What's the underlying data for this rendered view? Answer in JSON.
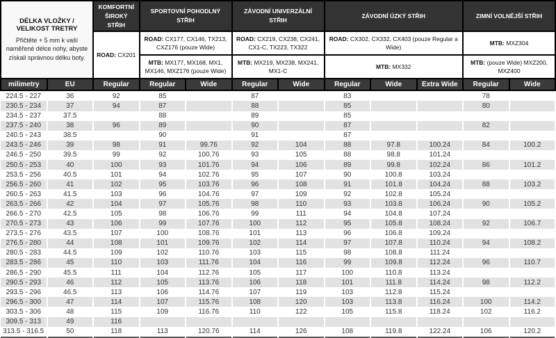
{
  "colors": {
    "header_dark": "#333333",
    "col_header_dark": "#3a3a3a",
    "intro_bg": "#f8f8f8",
    "zebra_gray": "#e2e2e2",
    "text_light": "#ffffff",
    "text_dark": "#333333"
  },
  "intro": {
    "title": "DÉLKA VLOŽKY / VELIKOST TRETRY",
    "description": "Přičtěte + 5 mm k vaší naměřené délce nohy, abyste získali správnou délku boty."
  },
  "groups": [
    {
      "title": "KOMFORTNÍ ŠIROKÝ STŘIH",
      "sub": [
        {
          "label": "ROAD:",
          "text": " CX201"
        }
      ]
    },
    {
      "title": "SPORTOVNÍ POHODLNÝ STŘIH",
      "sub": [
        {
          "label": "ROAD:",
          "text": " CX177, CX146, TX213, CXZ176 (pouze Wide)"
        },
        {
          "label": "MTB:",
          "text": " MX177, MX168, MX1, MX146, MXZ176 (pouze Wide)"
        }
      ]
    },
    {
      "title": "ZÁVODNÍ UNIVERZÁLNÍ STŘIH",
      "sub": [
        {
          "label": "ROAD:",
          "text": " CX219, CX238, CX241, CX1-C, TX223, TX322"
        },
        {
          "label": "MTB:",
          "text": " MX219, MX238, MX241, MX1-C"
        }
      ]
    },
    {
      "title": "ZÁVODNÍ ÚZKÝ STŘIH",
      "sub": [
        {
          "label": "ROAD:",
          "text": " CX302, CX332, CX403 (pouze Regular a Wide)"
        },
        {
          "label": "MTB:",
          "text": " MX332"
        }
      ]
    },
    {
      "title": "ZIMNÍ VOLNĚJŠÍ STŘIH",
      "sub": [
        {
          "label": "MTB:",
          "text": " MXZ304"
        },
        {
          "label": "MTB:",
          "text": " (pouze Wide) MXZ200, MXZ400"
        }
      ]
    }
  ],
  "table": {
    "columns": [
      "milimetry",
      "EU",
      "Regular",
      "Regular",
      "Wide",
      "Regular",
      "Wide",
      "Regular",
      "Wide",
      "Extra Wide",
      "Regular",
      "Wide"
    ],
    "rows": [
      [
        "224.5 - 227",
        "36",
        "92",
        "85",
        "",
        "87",
        "",
        "83",
        "",
        "",
        "78",
        ""
      ],
      [
        "230.5 - 234",
        "37",
        "94",
        "87",
        "",
        "88",
        "",
        "85",
        "",
        "",
        "80",
        ""
      ],
      [
        "234.5 - 237",
        "37.5",
        "",
        "88",
        "",
        "89",
        "",
        "85",
        "",
        "",
        "",
        ""
      ],
      [
        "237.5 - 240",
        "38",
        "96",
        "89",
        "",
        "90",
        "",
        "87",
        "",
        "",
        "82",
        ""
      ],
      [
        "240.5 - 243",
        "38.5",
        "",
        "90",
        "",
        "91",
        "",
        "87",
        "",
        "",
        "",
        ""
      ],
      [
        "243.5 - 246",
        "39",
        "98",
        "91",
        "99.76",
        "92",
        "104",
        "88",
        "97.8",
        "100.24",
        "84",
        "100.2"
      ],
      [
        "246.5 - 250",
        "39.5",
        "99",
        "92",
        "100.76",
        "93",
        "105",
        "88",
        "98.8",
        "101.24",
        "",
        ""
      ],
      [
        "250.5 - 253",
        "40",
        "100",
        "93",
        "101.76",
        "94",
        "106",
        "89",
        "99.8",
        "102.24",
        "86",
        "101.2"
      ],
      [
        "253.5 - 256",
        "40.5",
        "101",
        "94",
        "102.76",
        "95",
        "107",
        "90",
        "100.8",
        "103.24",
        "",
        ""
      ],
      [
        "256.5 - 260",
        "41",
        "102",
        "95",
        "103.76",
        "96",
        "108",
        "91",
        "101.8",
        "104.24",
        "88",
        "103.2"
      ],
      [
        "260.5 - 263",
        "41.5",
        "103",
        "96",
        "104.76",
        "97",
        "109",
        "92",
        "102.8",
        "105.24",
        "",
        ""
      ],
      [
        "263.5 - 266",
        "42",
        "104",
        "97",
        "105.76",
        "98",
        "110",
        "93",
        "103.8",
        "106.24",
        "90",
        "105.2"
      ],
      [
        "266.5 - 270",
        "42.5",
        "105",
        "98",
        "106.76",
        "99",
        "111",
        "94",
        "104.8",
        "107.24",
        "",
        ""
      ],
      [
        "270.5 - 273",
        "43",
        "106",
        "99",
        "107.76",
        "100",
        "112",
        "95",
        "105.8",
        "108.24",
        "92",
        "106.7"
      ],
      [
        "273.5 - 276",
        "43.5",
        "107",
        "100",
        "108.76",
        "101",
        "113",
        "96",
        "106.8",
        "109.24",
        "",
        ""
      ],
      [
        "276.5 - 280",
        "44",
        "108",
        "101",
        "109.76",
        "102",
        "114",
        "97",
        "107.8",
        "110.24",
        "94",
        "108.2"
      ],
      [
        "280.5 - 283",
        "44.5",
        "109",
        "102",
        "110.76",
        "103",
        "115",
        "98",
        "108.8",
        "111.24",
        "",
        ""
      ],
      [
        "283.5 - 286",
        "45",
        "110",
        "103",
        "111.76",
        "104",
        "116",
        "99",
        "109.8",
        "112.24",
        "96",
        "110.7"
      ],
      [
        "286.5 - 290",
        "45.5",
        "111",
        "104",
        "112.76",
        "105",
        "117",
        "100",
        "110.8",
        "113.24",
        "",
        ""
      ],
      [
        "290.5 - 293",
        "46",
        "112",
        "105",
        "113.76",
        "106",
        "118",
        "101",
        "111.8",
        "114.24",
        "98",
        "112.2"
      ],
      [
        "293.5 - 296",
        "46.5",
        "113",
        "106",
        "114.76",
        "107",
        "119",
        "103",
        "112.8",
        "115.24",
        "",
        ""
      ],
      [
        "296.5 - 300",
        "47",
        "114",
        "107",
        "115.76",
        "108",
        "120",
        "103",
        "113.8",
        "116.24",
        "100",
        "114.2"
      ],
      [
        "303.5 - 306",
        "48",
        "115",
        "109",
        "116.76",
        "110",
        "122",
        "105",
        "115.8",
        "118.24",
        "102",
        "116.2"
      ],
      [
        "309.5 - 313",
        "49",
        "116",
        "",
        "",
        "",
        "",
        "",
        "",
        "",
        "",
        ""
      ],
      [
        "313.5 - 316.5",
        "50",
        "118",
        "113",
        "120.76",
        "114",
        "126",
        "108",
        "119.8",
        "122.24",
        "106",
        "120.2"
      ]
    ]
  }
}
